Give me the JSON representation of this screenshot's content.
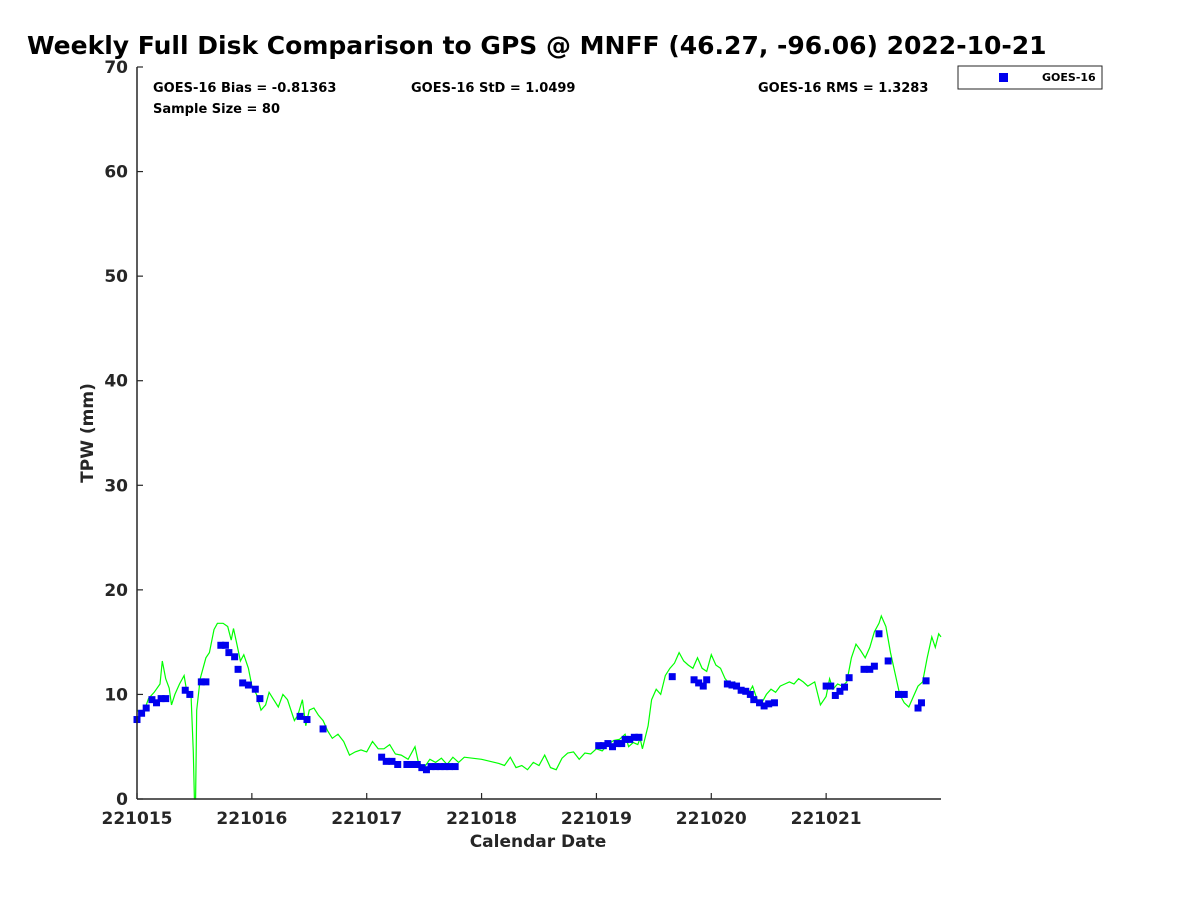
{
  "chart_data": {
    "type": "scatter",
    "title": "Weekly Full Disk Comparison to GPS @ MNFF (46.27, -96.06) 2022-10-21",
    "xlabel": "Calendar Date",
    "ylabel": "TPW (mm)",
    "xlim": [
      0,
      7
    ],
    "ylim": [
      0,
      70
    ],
    "x_ticks": [
      {
        "value": 0,
        "label": "221015"
      },
      {
        "value": 1,
        "label": "221016"
      },
      {
        "value": 2,
        "label": "221017"
      },
      {
        "value": 3,
        "label": "221018"
      },
      {
        "value": 4,
        "label": "221019"
      },
      {
        "value": 5,
        "label": "221020"
      },
      {
        "value": 6,
        "label": "221021"
      }
    ],
    "y_ticks": [
      0,
      10,
      20,
      30,
      40,
      50,
      60,
      70
    ],
    "grid": false,
    "legend_position": "top-right outside",
    "stats": {
      "bias": "GOES-16 Bias = -0.81363",
      "std": "GOES-16 StD = 1.0499",
      "rms": "GOES-16 RMS = 1.3283",
      "sample_size": "Sample Size = 80"
    },
    "series": [
      {
        "name": "GOES-16",
        "kind": "scatter",
        "marker": "square",
        "color": "#0000ee",
        "points": [
          [
            0.0,
            7.6
          ],
          [
            0.04,
            8.2
          ],
          [
            0.08,
            8.7
          ],
          [
            0.13,
            9.5
          ],
          [
            0.17,
            9.2
          ],
          [
            0.21,
            9.6
          ],
          [
            0.25,
            9.6
          ],
          [
            0.42,
            10.4
          ],
          [
            0.46,
            10.0
          ],
          [
            0.56,
            11.2
          ],
          [
            0.6,
            11.2
          ],
          [
            0.73,
            14.7
          ],
          [
            0.77,
            14.7
          ],
          [
            0.8,
            14.0
          ],
          [
            0.85,
            13.6
          ],
          [
            0.88,
            12.4
          ],
          [
            0.92,
            11.1
          ],
          [
            0.97,
            10.9
          ],
          [
            1.03,
            10.5
          ],
          [
            1.07,
            9.6
          ],
          [
            1.42,
            7.9
          ],
          [
            1.48,
            7.6
          ],
          [
            1.62,
            6.7
          ],
          [
            2.13,
            4.0
          ],
          [
            2.17,
            3.6
          ],
          [
            2.22,
            3.6
          ],
          [
            2.27,
            3.3
          ],
          [
            2.35,
            3.3
          ],
          [
            2.4,
            3.3
          ],
          [
            2.44,
            3.3
          ],
          [
            2.48,
            3.0
          ],
          [
            2.52,
            2.8
          ],
          [
            2.56,
            3.1
          ],
          [
            2.6,
            3.1
          ],
          [
            2.64,
            3.1
          ],
          [
            2.68,
            3.1
          ],
          [
            2.72,
            3.1
          ],
          [
            2.77,
            3.1
          ],
          [
            4.02,
            5.1
          ],
          [
            4.06,
            5.1
          ],
          [
            4.1,
            5.3
          ],
          [
            4.14,
            5.0
          ],
          [
            4.18,
            5.3
          ],
          [
            4.22,
            5.3
          ],
          [
            4.25,
            5.7
          ],
          [
            4.29,
            5.7
          ],
          [
            4.33,
            5.9
          ],
          [
            4.37,
            5.9
          ],
          [
            4.66,
            11.7
          ],
          [
            4.85,
            11.4
          ],
          [
            4.89,
            11.1
          ],
          [
            4.93,
            10.8
          ],
          [
            4.96,
            11.4
          ],
          [
            5.14,
            11.0
          ],
          [
            5.18,
            10.9
          ],
          [
            5.22,
            10.8
          ],
          [
            5.26,
            10.4
          ],
          [
            5.3,
            10.3
          ],
          [
            5.34,
            10.0
          ],
          [
            5.37,
            9.5
          ],
          [
            5.42,
            9.2
          ],
          [
            5.46,
            8.9
          ],
          [
            5.5,
            9.1
          ],
          [
            5.55,
            9.2
          ],
          [
            6.0,
            10.8
          ],
          [
            6.04,
            10.8
          ],
          [
            6.08,
            9.9
          ],
          [
            6.12,
            10.3
          ],
          [
            6.16,
            10.7
          ],
          [
            6.2,
            11.6
          ],
          [
            6.33,
            12.4
          ],
          [
            6.38,
            12.4
          ],
          [
            6.42,
            12.7
          ],
          [
            6.46,
            15.8
          ],
          [
            6.54,
            13.2
          ],
          [
            6.63,
            10.0
          ],
          [
            6.68,
            10.0
          ],
          [
            6.8,
            8.7
          ],
          [
            6.83,
            9.2
          ],
          [
            6.87,
            11.3
          ]
        ]
      },
      {
        "name": "",
        "kind": "line",
        "color": "#00ff00",
        "points": [
          [
            0.0,
            8.5
          ],
          [
            0.05,
            8.0
          ],
          [
            0.1,
            9.6
          ],
          [
            0.15,
            10.2
          ],
          [
            0.2,
            11.0
          ],
          [
            0.22,
            13.2
          ],
          [
            0.25,
            11.5
          ],
          [
            0.28,
            10.6
          ],
          [
            0.3,
            9.0
          ],
          [
            0.33,
            10.0
          ],
          [
            0.37,
            11.0
          ],
          [
            0.41,
            11.8
          ],
          [
            0.43,
            10.5
          ],
          [
            0.47,
            10.0
          ],
          [
            0.49,
            4.5
          ],
          [
            0.5,
            0
          ],
          [
            0.51,
            0
          ],
          [
            0.52,
            8.5
          ],
          [
            0.55,
            11.5
          ],
          [
            0.6,
            13.5
          ],
          [
            0.63,
            14.0
          ],
          [
            0.67,
            16.2
          ],
          [
            0.7,
            16.8
          ],
          [
            0.75,
            16.8
          ],
          [
            0.79,
            16.5
          ],
          [
            0.82,
            15.2
          ],
          [
            0.84,
            16.3
          ],
          [
            0.87,
            14.8
          ],
          [
            0.9,
            13.2
          ],
          [
            0.93,
            13.8
          ],
          [
            0.97,
            12.5
          ],
          [
            1.0,
            10.8
          ],
          [
            1.04,
            10.0
          ],
          [
            1.08,
            8.5
          ],
          [
            1.12,
            9.0
          ],
          [
            1.15,
            10.2
          ],
          [
            1.19,
            9.5
          ],
          [
            1.23,
            8.8
          ],
          [
            1.27,
            10.0
          ],
          [
            1.31,
            9.5
          ],
          [
            1.34,
            8.5
          ],
          [
            1.37,
            7.5
          ],
          [
            1.4,
            8.0
          ],
          [
            1.44,
            9.5
          ],
          [
            1.47,
            7.0
          ],
          [
            1.5,
            8.5
          ],
          [
            1.54,
            8.7
          ],
          [
            1.58,
            8.0
          ],
          [
            1.62,
            7.5
          ],
          [
            1.66,
            6.5
          ],
          [
            1.7,
            5.8
          ],
          [
            1.75,
            6.2
          ],
          [
            1.8,
            5.5
          ],
          [
            1.85,
            4.2
          ],
          [
            1.9,
            4.5
          ],
          [
            1.95,
            4.7
          ],
          [
            2.0,
            4.5
          ],
          [
            2.05,
            5.5
          ],
          [
            2.1,
            4.8
          ],
          [
            2.15,
            4.8
          ],
          [
            2.2,
            5.2
          ],
          [
            2.25,
            4.3
          ],
          [
            2.3,
            4.2
          ],
          [
            2.36,
            3.8
          ],
          [
            2.42,
            5.0
          ],
          [
            2.45,
            3.5
          ],
          [
            2.5,
            3.0
          ],
          [
            2.55,
            3.8
          ],
          [
            2.6,
            3.5
          ],
          [
            2.65,
            3.9
          ],
          [
            2.7,
            3.3
          ],
          [
            2.75,
            4.0
          ],
          [
            2.8,
            3.5
          ],
          [
            2.85,
            4.0
          ],
          [
            3.0,
            3.8
          ],
          [
            3.15,
            3.4
          ],
          [
            3.2,
            3.2
          ],
          [
            3.25,
            4.0
          ],
          [
            3.3,
            3.0
          ],
          [
            3.35,
            3.2
          ],
          [
            3.4,
            2.8
          ],
          [
            3.45,
            3.5
          ],
          [
            3.5,
            3.2
          ],
          [
            3.55,
            4.2
          ],
          [
            3.6,
            3.0
          ],
          [
            3.65,
            2.8
          ],
          [
            3.7,
            3.9
          ],
          [
            3.75,
            4.4
          ],
          [
            3.8,
            4.5
          ],
          [
            3.85,
            3.8
          ],
          [
            3.9,
            4.4
          ],
          [
            3.95,
            4.3
          ],
          [
            4.0,
            4.8
          ],
          [
            4.05,
            4.6
          ],
          [
            4.1,
            5.2
          ],
          [
            4.15,
            5.6
          ],
          [
            4.2,
            5.7
          ],
          [
            4.25,
            6.2
          ],
          [
            4.28,
            5.0
          ],
          [
            4.32,
            5.4
          ],
          [
            4.36,
            5.2
          ],
          [
            4.38,
            5.8
          ],
          [
            4.4,
            4.8
          ],
          [
            4.45,
            7.0
          ],
          [
            4.48,
            9.5
          ],
          [
            4.52,
            10.5
          ],
          [
            4.56,
            10.0
          ],
          [
            4.6,
            11.8
          ],
          [
            4.64,
            12.5
          ],
          [
            4.68,
            13.0
          ],
          [
            4.72,
            14.0
          ],
          [
            4.76,
            13.2
          ],
          [
            4.8,
            12.8
          ],
          [
            4.84,
            12.5
          ],
          [
            4.88,
            13.5
          ],
          [
            4.92,
            12.5
          ],
          [
            4.96,
            12.2
          ],
          [
            5.0,
            13.8
          ],
          [
            5.04,
            12.8
          ],
          [
            5.08,
            12.5
          ],
          [
            5.12,
            11.5
          ],
          [
            5.16,
            11.0
          ],
          [
            5.2,
            11.2
          ],
          [
            5.24,
            10.5
          ],
          [
            5.28,
            10.2
          ],
          [
            5.32,
            10.0
          ],
          [
            5.36,
            10.8
          ],
          [
            5.4,
            9.5
          ],
          [
            5.44,
            9.2
          ],
          [
            5.48,
            10.0
          ],
          [
            5.52,
            10.5
          ],
          [
            5.56,
            10.2
          ],
          [
            5.6,
            10.8
          ],
          [
            5.64,
            11.0
          ],
          [
            5.68,
            11.2
          ],
          [
            5.72,
            11.0
          ],
          [
            5.76,
            11.5
          ],
          [
            5.8,
            11.2
          ],
          [
            5.84,
            10.8
          ],
          [
            5.9,
            11.2
          ],
          [
            5.95,
            9.0
          ],
          [
            6.0,
            9.8
          ],
          [
            6.03,
            11.5
          ],
          [
            6.06,
            10.5
          ],
          [
            6.1,
            11.0
          ],
          [
            6.14,
            10.8
          ],
          [
            6.18,
            11.2
          ],
          [
            6.22,
            13.5
          ],
          [
            6.26,
            14.8
          ],
          [
            6.3,
            14.2
          ],
          [
            6.34,
            13.5
          ],
          [
            6.38,
            14.5
          ],
          [
            6.42,
            16.0
          ],
          [
            6.46,
            16.8
          ],
          [
            6.48,
            17.5
          ],
          [
            6.52,
            16.5
          ],
          [
            6.56,
            14.0
          ],
          [
            6.6,
            12.0
          ],
          [
            6.64,
            10.0
          ],
          [
            6.68,
            9.2
          ],
          [
            6.72,
            8.8
          ],
          [
            6.76,
            9.8
          ],
          [
            6.8,
            10.8
          ],
          [
            6.84,
            11.2
          ],
          [
            6.88,
            13.5
          ],
          [
            6.92,
            15.5
          ],
          [
            6.95,
            14.5
          ],
          [
            6.98,
            15.8
          ],
          [
            7.0,
            15.5
          ]
        ]
      }
    ]
  }
}
